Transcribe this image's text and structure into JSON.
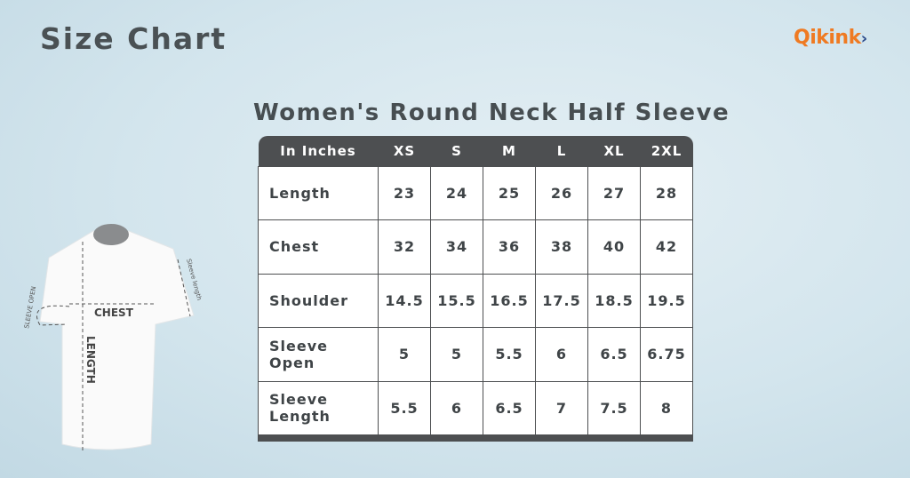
{
  "header": {
    "title": "Size Chart",
    "logo": "Qikink",
    "logo_chevron": "›"
  },
  "chart": {
    "subtitle": "Women's Round Neck Half Sleeve",
    "columns": [
      "In Inches",
      "XS",
      "S",
      "M",
      "L",
      "XL",
      "2XL"
    ],
    "rows": [
      {
        "label": "Length",
        "values": [
          "23",
          "24",
          "25",
          "26",
          "27",
          "28"
        ]
      },
      {
        "label": "Chest",
        "values": [
          "32",
          "34",
          "36",
          "38",
          "40",
          "42"
        ]
      },
      {
        "label": "Shoulder",
        "values": [
          "14.5",
          "15.5",
          "16.5",
          "17.5",
          "18.5",
          "19.5"
        ]
      },
      {
        "label": "Sleeve Open",
        "values": [
          "5",
          "5",
          "5.5",
          "6",
          "6.5",
          "6.75"
        ]
      },
      {
        "label": "Sleeve Length",
        "values": [
          "5.5",
          "6",
          "6.5",
          "7",
          "7.5",
          "8"
        ]
      }
    ]
  },
  "diagram": {
    "chest": "CHEST",
    "length": "LENGTH",
    "sleeve_open": "SLEEVE OPEN",
    "sleeve_length": "Sleeve length"
  },
  "colors": {
    "header_bg": "#4d4f51",
    "logo_orange": "#ef7a22",
    "logo_blue": "#2b4a8a"
  }
}
